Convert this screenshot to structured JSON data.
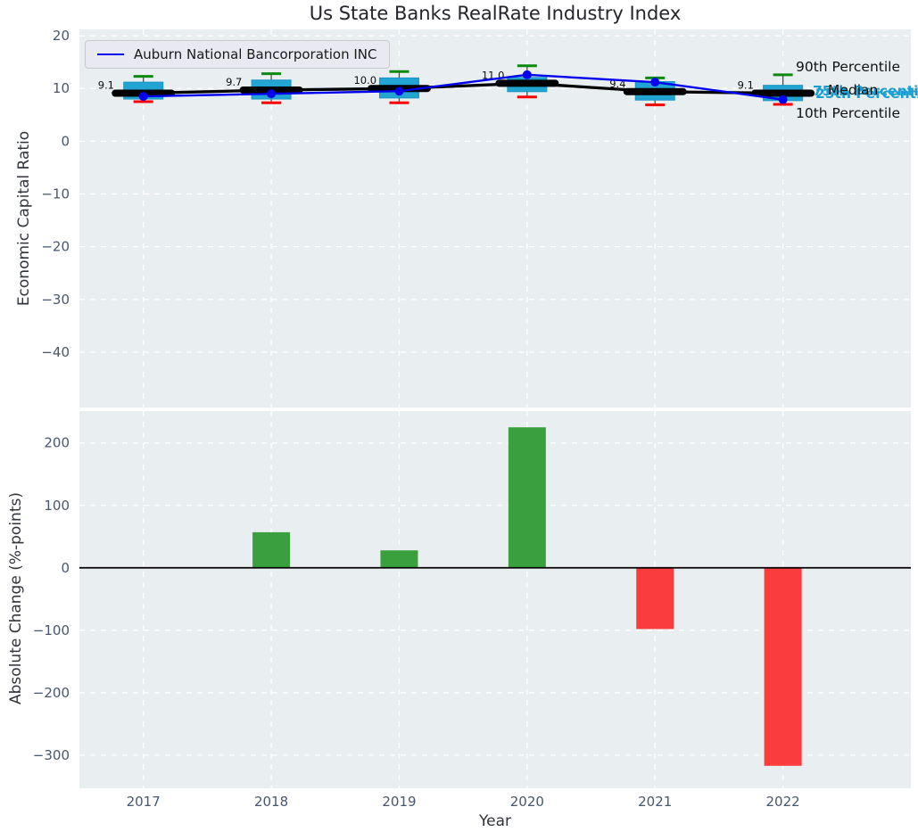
{
  "figure": {
    "title": "Us State Banks RealRate Industry Index",
    "xlabel": "Year"
  },
  "legend": {
    "label": "Auburn National Bancorporation INC"
  },
  "side_labels": {
    "p90": "90th Percentile",
    "median": "Median",
    "p75": "75th Percentile",
    "p25": "25th Percentile",
    "p10": "10th Percentile"
  },
  "colors": {
    "plot_bg": "#e9eef1",
    "grid": "#ffffff",
    "box_fill": "#22a5d3",
    "box_edge": "#1a94c2",
    "whisker": "#4d4d4d",
    "cap_top": "#0d8a0d",
    "cap_bottom": "#ff0000",
    "median_line": "#000000",
    "company_line": "#0000ee",
    "bar_positive": "#3aa03e",
    "bar_negative": "#fb3c3c",
    "zero_line": "#000000",
    "tick_label": "#47576e",
    "axis_label": "#31343b",
    "median_label": "#0d0d0d",
    "annotation_cyan": "#1b9fd1",
    "annotation_black": "#111111"
  },
  "chart_data": [
    {
      "type": "boxplot",
      "title": "Us State Banks RealRate Industry Index",
      "ylabel": "Economic Capital Ratio",
      "categories": [
        "2017",
        "2018",
        "2019",
        "2020",
        "2021",
        "2022"
      ],
      "yticks": [
        20,
        10,
        0,
        -10,
        -20,
        -30,
        -40
      ],
      "ylim": [
        -50.5,
        21.2
      ],
      "xlim": [
        -0.5,
        6.0
      ],
      "grid": true,
      "legend_position": "upper-left",
      "boxes": [
        {
          "category": "2017",
          "p10": 7.5,
          "p25": 8.0,
          "median": 9.1,
          "p75": 11.2,
          "p90": 12.3
        },
        {
          "category": "2018",
          "p10": 7.3,
          "p25": 8.0,
          "median": 9.7,
          "p75": 11.6,
          "p90": 12.8
        },
        {
          "category": "2019",
          "p10": 7.3,
          "p25": 8.2,
          "median": 10.0,
          "p75": 12.0,
          "p90": 13.2
        },
        {
          "category": "2020",
          "p10": 8.4,
          "p25": 9.4,
          "median": 11.0,
          "p75": 12.1,
          "p90": 14.3
        },
        {
          "category": "2021",
          "p10": 6.9,
          "p25": 7.8,
          "median": 9.4,
          "p75": 11.3,
          "p90": 12.0
        },
        {
          "category": "2022",
          "p10": 7.0,
          "p25": 7.7,
          "median": 9.1,
          "p75": 10.6,
          "p90": 12.6
        }
      ],
      "median_labels": [
        "9.1",
        "9.7",
        "10.0",
        "11.0",
        "9.4",
        "9.1"
      ],
      "series": [
        {
          "name": "Auburn National Bancorporation INC",
          "values": [
            8.5,
            9.0,
            9.5,
            12.6,
            11.2,
            7.9
          ],
          "color": "#0000ee",
          "marker": "circle"
        }
      ]
    },
    {
      "type": "bar",
      "ylabel": "Absolute Change (%-points)",
      "xlabel": "Year",
      "categories": [
        "2017",
        "2018",
        "2019",
        "2020",
        "2021",
        "2022"
      ],
      "values": [
        0,
        57,
        28,
        225,
        -98,
        -317
      ],
      "yticks": [
        200,
        100,
        0,
        -100,
        -200,
        -300
      ],
      "ylim": [
        -353,
        251
      ],
      "xlim": [
        -0.5,
        6.0
      ],
      "grid": true
    }
  ]
}
